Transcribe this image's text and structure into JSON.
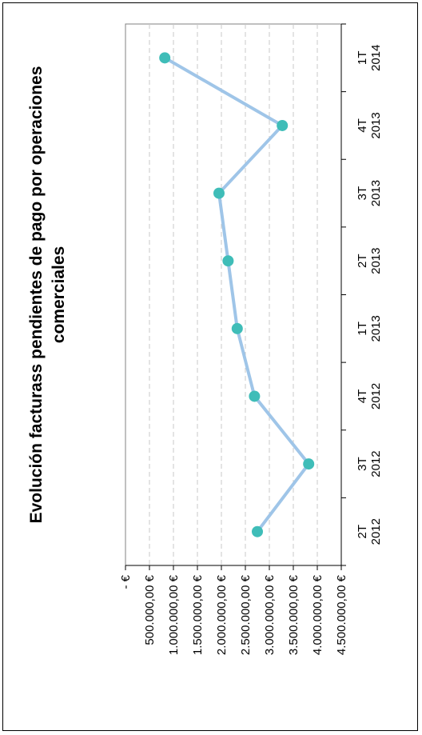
{
  "chart_data": {
    "type": "line",
    "title_lines": [
      "Evolución facturass pendientes de pago por operaciones",
      "comerciales"
    ],
    "xlabel": "",
    "ylabel": "",
    "categories": [
      [
        "2T",
        "2012"
      ],
      [
        "3T",
        "2012"
      ],
      [
        "4T",
        "2012"
      ],
      [
        "1T",
        "2013"
      ],
      [
        "2T",
        "2013"
      ],
      [
        "3T",
        "2013"
      ],
      [
        "4T",
        "2013"
      ],
      [
        "1T",
        "2014"
      ]
    ],
    "series": [
      {
        "values": [
          2750000,
          3820000,
          2690000,
          2330000,
          2140000,
          1950000,
          3270000,
          820000
        ]
      }
    ],
    "ylim": [
      0,
      4500000
    ],
    "y_ticks": [
      "4.500.000,00 €",
      "4.000.000,00 €",
      "3.500.000,00 €",
      "3.000.000,00 €",
      "2.500.000,00 €",
      "2.000.000,00 €",
      "1.500.000,00 €",
      "1.000.000,00 €",
      "500.000,00 €",
      "-        €"
    ],
    "grid": true,
    "orientation": "rotated-90",
    "line_color": "#9fc5e8",
    "marker_color": "#3fbdb8"
  }
}
